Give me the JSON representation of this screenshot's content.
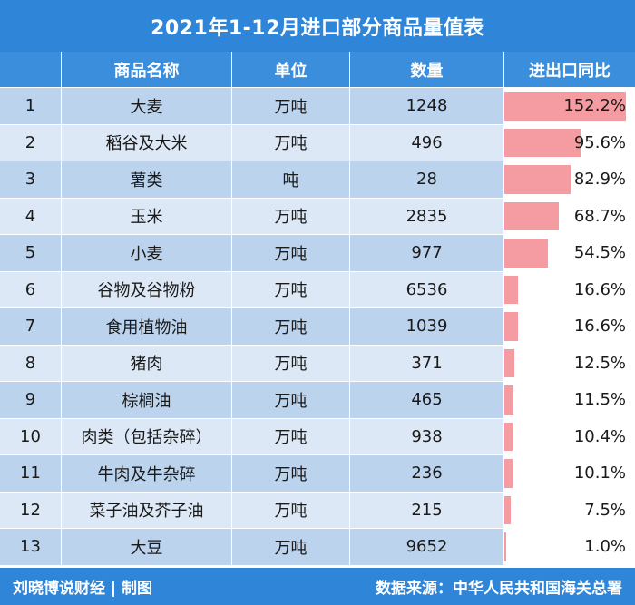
{
  "title": "2021年1-12月进口部分商品量值表",
  "headers": {
    "index": "",
    "name": "商品名称",
    "unit": "单位",
    "quantity": "数量",
    "yoy": "进出口同比"
  },
  "rows": [
    {
      "index": "1",
      "name": "大麦",
      "unit": "万吨",
      "quantity": "1248",
      "yoy": "152.2%",
      "yoy_value": 152.2
    },
    {
      "index": "2",
      "name": "稻谷及大米",
      "unit": "万吨",
      "quantity": "496",
      "yoy": "95.6%",
      "yoy_value": 95.6
    },
    {
      "index": "3",
      "name": "薯类",
      "unit": "吨",
      "quantity": "28",
      "yoy": "82.9%",
      "yoy_value": 82.9
    },
    {
      "index": "4",
      "name": "玉米",
      "unit": "万吨",
      "quantity": "2835",
      "yoy": "68.7%",
      "yoy_value": 68.7
    },
    {
      "index": "5",
      "name": "小麦",
      "unit": "万吨",
      "quantity": "977",
      "yoy": "54.5%",
      "yoy_value": 54.5
    },
    {
      "index": "6",
      "name": "谷物及谷物粉",
      "unit": "万吨",
      "quantity": "6536",
      "yoy": "16.6%",
      "yoy_value": 16.6
    },
    {
      "index": "7",
      "name": "食用植物油",
      "unit": "万吨",
      "quantity": "1039",
      "yoy": "16.6%",
      "yoy_value": 16.6
    },
    {
      "index": "8",
      "name": "猪肉",
      "unit": "万吨",
      "quantity": "371",
      "yoy": "12.5%",
      "yoy_value": 12.5
    },
    {
      "index": "9",
      "name": "棕榈油",
      "unit": "万吨",
      "quantity": "465",
      "yoy": "11.5%",
      "yoy_value": 11.5
    },
    {
      "index": "10",
      "name": "肉类（包括杂碎）",
      "unit": "万吨",
      "quantity": "938",
      "yoy": "10.4%",
      "yoy_value": 10.4
    },
    {
      "index": "11",
      "name": "牛肉及牛杂碎",
      "unit": "万吨",
      "quantity": "236",
      "yoy": "10.1%",
      "yoy_value": 10.1
    },
    {
      "index": "12",
      "name": "菜子油及芥子油",
      "unit": "万吨",
      "quantity": "215",
      "yoy": "7.5%",
      "yoy_value": 7.5
    },
    {
      "index": "13",
      "name": "大豆",
      "unit": "万吨",
      "quantity": "9652",
      "yoy": "1.0%",
      "yoy_value": 1.0
    }
  ],
  "footer": {
    "left": "刘晓博说财经 | 制图",
    "right": "数据来源：中华人民共和国海关总署"
  },
  "colors": {
    "header_bg": "#2f86d8",
    "bar": "#f59ca2",
    "row_dark": "#bcd3ee",
    "row_light": "#dde8f6"
  },
  "chart_data": {
    "type": "table",
    "title": "2021年1-12月进口部分商品量值表",
    "columns": [
      "",
      "商品名称",
      "单位",
      "数量",
      "进出口同比"
    ],
    "categories": [
      "大麦",
      "稻谷及大米",
      "薯类",
      "玉米",
      "小麦",
      "谷物及谷物粉",
      "食用植物油",
      "猪肉",
      "棕榈油",
      "肉类（包括杂碎）",
      "牛肉及牛杂碎",
      "菜子油及芥子油",
      "大豆"
    ],
    "units": [
      "万吨",
      "万吨",
      "吨",
      "万吨",
      "万吨",
      "万吨",
      "万吨",
      "万吨",
      "万吨",
      "万吨",
      "万吨",
      "万吨",
      "万吨"
    ],
    "quantities": [
      1248,
      496,
      28,
      2835,
      977,
      6536,
      1039,
      371,
      465,
      938,
      236,
      215,
      9652
    ],
    "series": [
      {
        "name": "进出口同比",
        "values": [
          152.2,
          95.6,
          82.9,
          68.7,
          54.5,
          16.6,
          16.6,
          12.5,
          11.5,
          10.4,
          10.1,
          7.5,
          1.0
        ]
      }
    ],
    "bar_max": 152.2
  }
}
